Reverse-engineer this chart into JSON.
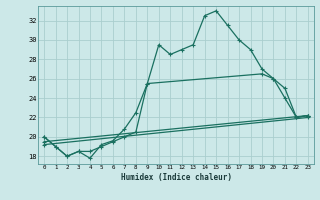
{
  "xlabel": "Humidex (Indice chaleur)",
  "background_color": "#cce8e8",
  "line_color": "#1a7060",
  "grid_color": "#aacece",
  "xlim": [
    -0.5,
    23.5
  ],
  "ylim": [
    17.2,
    33.5
  ],
  "xticks": [
    0,
    1,
    2,
    3,
    4,
    5,
    6,
    7,
    8,
    9,
    10,
    11,
    12,
    13,
    14,
    15,
    16,
    17,
    18,
    19,
    20,
    21,
    22,
    23
  ],
  "yticks": [
    18,
    20,
    22,
    24,
    26,
    28,
    30,
    32
  ],
  "line0_x": [
    0,
    1,
    2,
    3,
    4,
    5,
    6,
    7,
    8,
    9,
    10,
    11,
    12,
    13,
    14,
    15,
    16,
    17,
    18,
    19,
    20,
    21,
    22,
    23
  ],
  "line0_y": [
    20.0,
    19.0,
    18.0,
    18.5,
    17.8,
    19.2,
    19.6,
    20.8,
    22.5,
    25.5,
    29.5,
    28.5,
    29.0,
    29.5,
    32.5,
    33.0,
    31.5,
    30.0,
    29.0,
    27.0,
    26.0,
    24.0,
    22.0,
    22.2
  ],
  "line1_x": [
    0,
    1,
    2,
    3,
    4,
    5,
    6,
    7,
    8,
    9,
    19,
    20,
    21,
    22,
    23
  ],
  "line1_y": [
    20.0,
    19.0,
    18.0,
    18.5,
    18.5,
    19.0,
    19.5,
    20.0,
    20.5,
    25.5,
    26.5,
    26.0,
    25.0,
    22.0,
    22.2
  ],
  "line2_x": [
    0,
    4,
    23
  ],
  "line2_y": [
    19.5,
    19.0,
    22.2
  ],
  "line3_x": [
    0,
    4,
    23
  ],
  "line3_y": [
    19.5,
    19.2,
    22.2
  ]
}
